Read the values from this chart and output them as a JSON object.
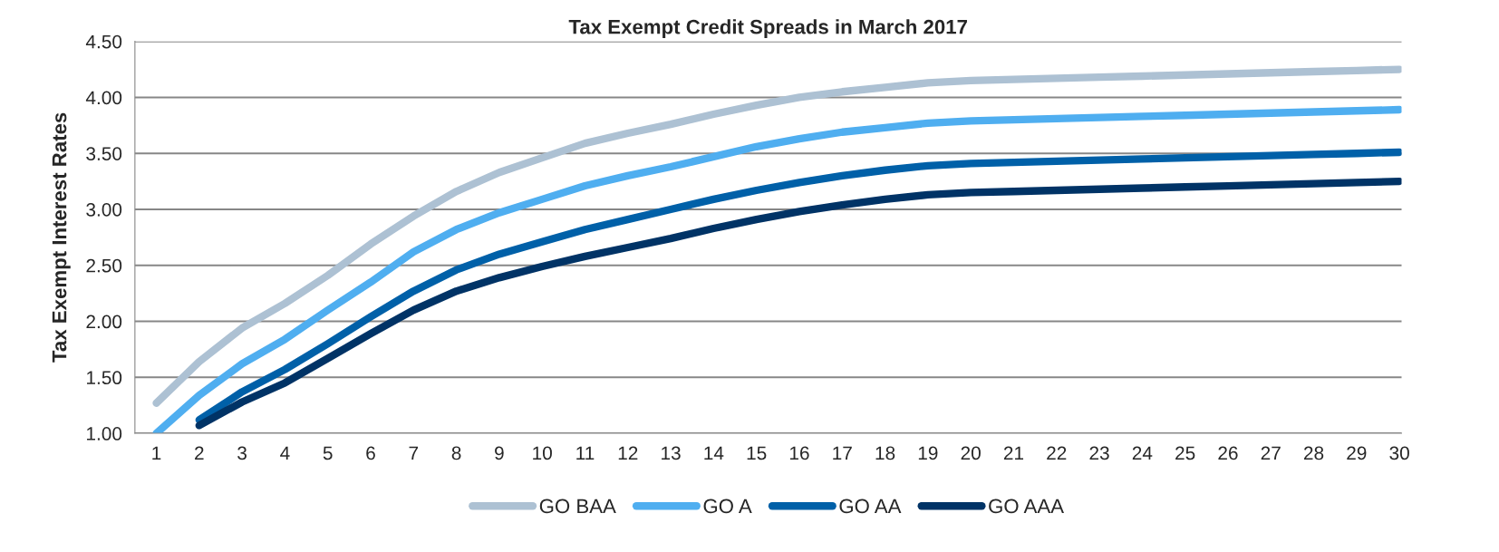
{
  "chart_data": {
    "type": "line",
    "title": "Tax Exempt Credit Spreads in March 2017",
    "ylabel": "Tax Exempt Interest Rates",
    "categories": [
      "1",
      "2",
      "3",
      "4",
      "5",
      "6",
      "7",
      "8",
      "9",
      "10",
      "11",
      "12",
      "13",
      "14",
      "15",
      "16",
      "17",
      "18",
      "19",
      "20",
      "21",
      "22",
      "23",
      "24",
      "25",
      "26",
      "27",
      "28",
      "29",
      "30"
    ],
    "series": [
      {
        "name": "GO BAA",
        "color": "#adc1d3",
        "values": [
          1.27,
          1.64,
          1.94,
          2.16,
          2.41,
          2.69,
          2.94,
          3.16,
          3.33,
          3.46,
          3.59,
          3.68,
          3.76,
          3.85,
          3.93,
          4.0,
          4.05,
          4.09,
          4.13,
          4.15,
          4.16,
          4.17,
          4.18,
          4.19,
          4.2,
          4.21,
          4.22,
          4.23,
          4.24,
          4.25
        ]
      },
      {
        "name": "GO A",
        "color": "#4faef0",
        "values": [
          1.0,
          1.34,
          1.62,
          1.84,
          2.1,
          2.35,
          2.62,
          2.82,
          2.97,
          3.09,
          3.21,
          3.3,
          3.38,
          3.47,
          3.56,
          3.63,
          3.69,
          3.73,
          3.77,
          3.79,
          3.8,
          3.81,
          3.82,
          3.83,
          3.84,
          3.85,
          3.86,
          3.87,
          3.88,
          3.89
        ]
      },
      {
        "name": "GO AA",
        "color": "#0060a8",
        "values": [
          null,
          1.12,
          1.37,
          1.57,
          1.8,
          2.04,
          2.27,
          2.46,
          2.6,
          2.71,
          2.82,
          2.91,
          3.0,
          3.09,
          3.17,
          3.24,
          3.3,
          3.35,
          3.39,
          3.41,
          3.42,
          3.43,
          3.44,
          3.45,
          3.46,
          3.47,
          3.48,
          3.49,
          3.5,
          3.51
        ]
      },
      {
        "name": "GO AAA",
        "color": "#003366",
        "values": [
          null,
          1.07,
          1.28,
          1.45,
          1.67,
          1.89,
          2.1,
          2.27,
          2.39,
          2.49,
          2.58,
          2.66,
          2.74,
          2.83,
          2.91,
          2.98,
          3.04,
          3.09,
          3.13,
          3.15,
          3.16,
          3.17,
          3.18,
          3.19,
          3.2,
          3.21,
          3.22,
          3.23,
          3.24,
          3.25
        ]
      }
    ],
    "ylim": [
      1.0,
      4.5
    ],
    "yticks": [
      {
        "value": 1.0,
        "label": "1.00"
      },
      {
        "value": 1.5,
        "label": "1.50"
      },
      {
        "value": 2.0,
        "label": "2.00"
      },
      {
        "value": 2.5,
        "label": "2.50"
      },
      {
        "value": 3.0,
        "label": "3.00"
      },
      {
        "value": 3.5,
        "label": "3.50"
      },
      {
        "value": 4.0,
        "label": "4.00"
      },
      {
        "value": 4.5,
        "label": "4.50"
      }
    ],
    "grid": "y",
    "legend": "bottom",
    "line_style": "solid",
    "marker": "none"
  }
}
